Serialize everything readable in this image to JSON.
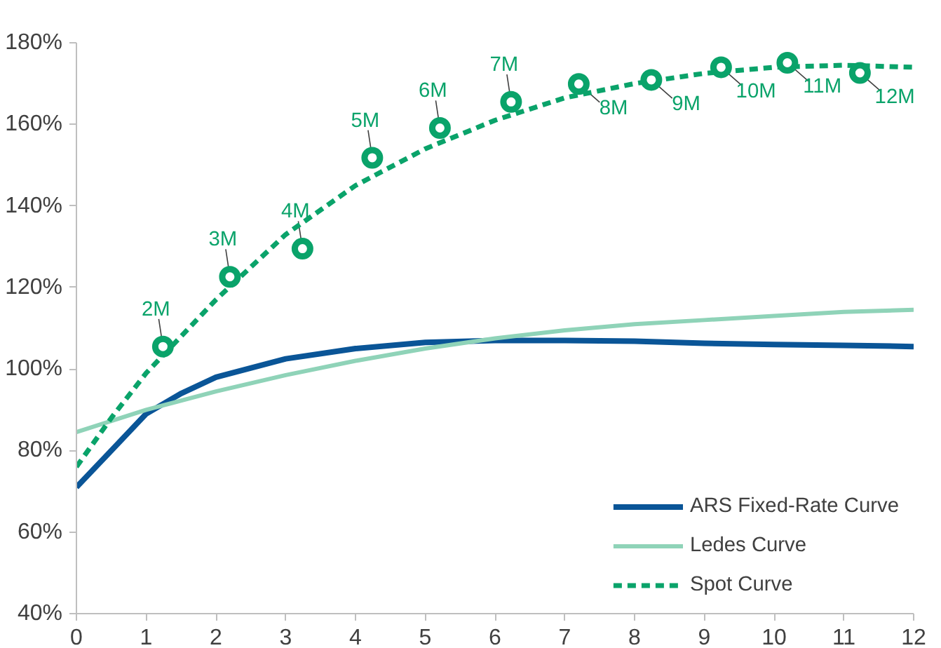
{
  "chart_data": {
    "type": "line",
    "xlim": [
      0,
      12
    ],
    "xticks": [
      0,
      1,
      2,
      3,
      4,
      5,
      6,
      7,
      8,
      9,
      10,
      11,
      12
    ],
    "ylim": [
      40,
      180
    ],
    "yticks": [
      {
        "value": 40,
        "label": "40%"
      },
      {
        "value": 60,
        "label": "60%"
      },
      {
        "value": 80,
        "label": "80%"
      },
      {
        "value": 100,
        "label": "100%"
      },
      {
        "value": 120,
        "label": "120%"
      },
      {
        "value": 140,
        "label": "140%"
      },
      {
        "value": 160,
        "label": "160%"
      },
      {
        "value": 180,
        "label": "180%"
      }
    ],
    "grid": false,
    "legend": "bottom right",
    "series": [
      {
        "name": "ARS Fixed-Rate Curve",
        "color": "#0a5597",
        "line_style": "solid",
        "x": [
          0,
          0.5,
          1,
          1.5,
          2,
          3,
          4,
          5,
          6,
          7,
          8,
          9,
          10,
          11,
          12
        ],
        "values": [
          71,
          80,
          89,
          94,
          98,
          102.5,
          105,
          106.5,
          107,
          107,
          106.8,
          106.3,
          106,
          105.8,
          105.5
        ]
      },
      {
        "name": "Ledes Curve",
        "color": "#8fd3b8",
        "line_style": "solid",
        "x": [
          0,
          1,
          2,
          3,
          4,
          5,
          6,
          7,
          8,
          9,
          10,
          11,
          12
        ],
        "values": [
          84.5,
          90,
          94.5,
          98.5,
          102,
          105,
          107.5,
          109.5,
          111,
          112,
          113,
          114,
          114.5
        ]
      },
      {
        "name": "Spot Curve",
        "color": "#0aa36a",
        "line_style": "dashed",
        "x": [
          0,
          0.5,
          1,
          1.5,
          2,
          3,
          4,
          5,
          6,
          7,
          8,
          9,
          10,
          11,
          12
        ],
        "values": [
          76,
          88,
          99,
          108,
          117,
          133,
          145,
          154,
          161,
          166.5,
          170,
          172.5,
          174,
          174.5,
          174
        ]
      },
      {
        "type": "scatter",
        "color": "#0aa36a",
        "marker": "circle",
        "x": [
          1.24,
          2.2,
          3.24,
          4.24,
          5.21,
          6.23,
          7.2,
          8.24,
          9.24,
          10.19,
          11.23
        ],
        "values": [
          105.5,
          122.6,
          129.5,
          151.8,
          159.1,
          165.5,
          169.9,
          170.9,
          174,
          175.1,
          172.6
        ]
      }
    ],
    "annotations": [
      {
        "text": "2M",
        "x": 1.24,
        "y": 105.5
      },
      {
        "text": "3M",
        "x": 2.2,
        "y": 122.6
      },
      {
        "text": "4M",
        "x": 3.24,
        "y": 129.5
      },
      {
        "text": "5M",
        "x": 4.24,
        "y": 151.8
      },
      {
        "text": "6M",
        "x": 5.21,
        "y": 159.1
      },
      {
        "text": "7M",
        "x": 6.23,
        "y": 165.5
      },
      {
        "text": "8M",
        "x": 7.2,
        "y": 169.9
      },
      {
        "text": "9M",
        "x": 8.24,
        "y": 170.9
      },
      {
        "text": "10M",
        "x": 9.24,
        "y": 174
      },
      {
        "text": "11M",
        "x": 10.19,
        "y": 175.1
      },
      {
        "text": "12M",
        "x": 11.23,
        "y": 172.6
      }
    ]
  }
}
